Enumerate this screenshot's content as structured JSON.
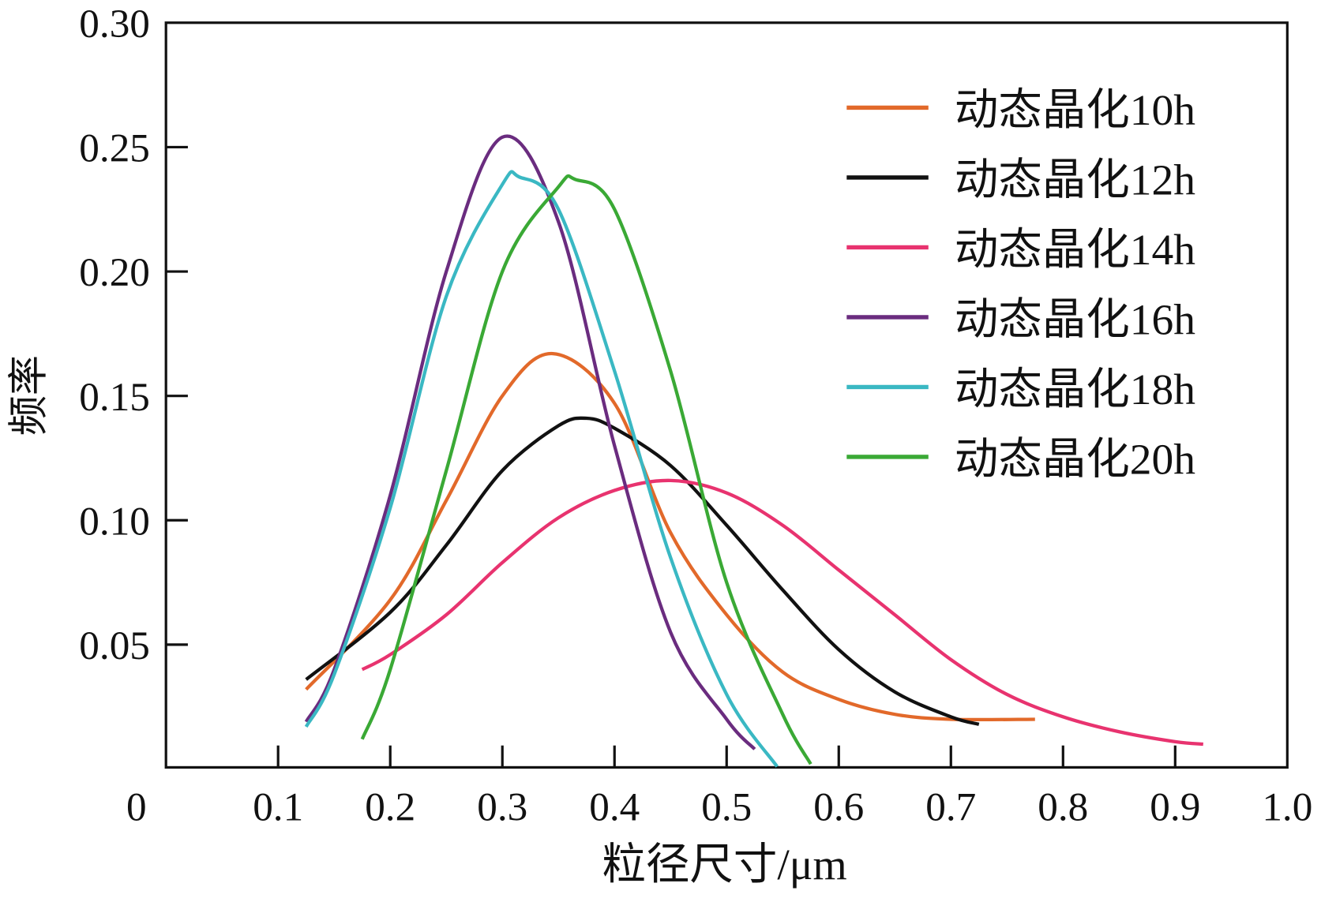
{
  "chart_data": {
    "type": "line",
    "title": "",
    "xlabel": "粒径尺寸/μm",
    "ylabel": "频率",
    "xlim": [
      0,
      1.0
    ],
    "ylim": [
      0,
      0.3
    ],
    "xticks": [
      "0",
      "0.1",
      "0.2",
      "0.3",
      "0.4",
      "0.5",
      "0.6",
      "0.7",
      "0.8",
      "0.9",
      "1.0"
    ],
    "yticks": [
      "0.05",
      "0.10",
      "0.15",
      "0.20",
      "0.25",
      "0.30"
    ],
    "grid": false,
    "legend_position": "top-right",
    "series": [
      {
        "name": "动态晶化10h",
        "color": "#e2692a",
        "x": [
          0.125,
          0.2,
          0.25,
          0.3,
          0.345,
          0.4,
          0.45,
          0.5,
          0.55,
          0.6,
          0.65,
          0.7,
          0.775
        ],
        "y": [
          0.032,
          0.068,
          0.108,
          0.15,
          0.167,
          0.147,
          0.095,
          0.062,
          0.039,
          0.028,
          0.022,
          0.02,
          0.02
        ]
      },
      {
        "name": "动态晶化12h",
        "color": "#111111",
        "x": [
          0.125,
          0.2,
          0.25,
          0.3,
          0.35,
          0.375,
          0.4,
          0.45,
          0.5,
          0.55,
          0.6,
          0.65,
          0.7,
          0.725
        ],
        "y": [
          0.036,
          0.063,
          0.09,
          0.12,
          0.138,
          0.141,
          0.137,
          0.122,
          0.098,
          0.072,
          0.048,
          0.031,
          0.021,
          0.018
        ]
      },
      {
        "name": "动态晶化14h",
        "color": "#e8336f",
        "x": [
          0.175,
          0.2,
          0.25,
          0.3,
          0.35,
          0.4,
          0.45,
          0.5,
          0.55,
          0.6,
          0.65,
          0.7,
          0.75,
          0.8,
          0.85,
          0.9,
          0.925
        ],
        "y": [
          0.04,
          0.046,
          0.062,
          0.083,
          0.101,
          0.112,
          0.116,
          0.111,
          0.098,
          0.08,
          0.062,
          0.044,
          0.03,
          0.021,
          0.015,
          0.011,
          0.01
        ]
      },
      {
        "name": "动态晶化16h",
        "color": "#6a2c7f",
        "x": [
          0.125,
          0.15,
          0.2,
          0.25,
          0.3,
          0.35,
          0.4,
          0.45,
          0.5,
          0.525
        ],
        "y": [
          0.019,
          0.04,
          0.11,
          0.2,
          0.254,
          0.22,
          0.13,
          0.055,
          0.02,
          0.008
        ]
      },
      {
        "name": "动态晶化18h",
        "color": "#3ab8c3",
        "x": [
          0.125,
          0.15,
          0.2,
          0.25,
          0.3,
          0.315,
          0.35,
          0.4,
          0.45,
          0.5,
          0.545
        ],
        "y": [
          0.017,
          0.038,
          0.105,
          0.19,
          0.235,
          0.238,
          0.225,
          0.16,
          0.085,
          0.03,
          0.001
        ]
      },
      {
        "name": "动态晶化20h",
        "color": "#3aa935",
        "x": [
          0.175,
          0.2,
          0.25,
          0.3,
          0.35,
          0.365,
          0.4,
          0.45,
          0.5,
          0.55,
          0.575
        ],
        "y": [
          0.012,
          0.04,
          0.12,
          0.2,
          0.234,
          0.237,
          0.225,
          0.16,
          0.075,
          0.022,
          0.002
        ]
      }
    ]
  }
}
